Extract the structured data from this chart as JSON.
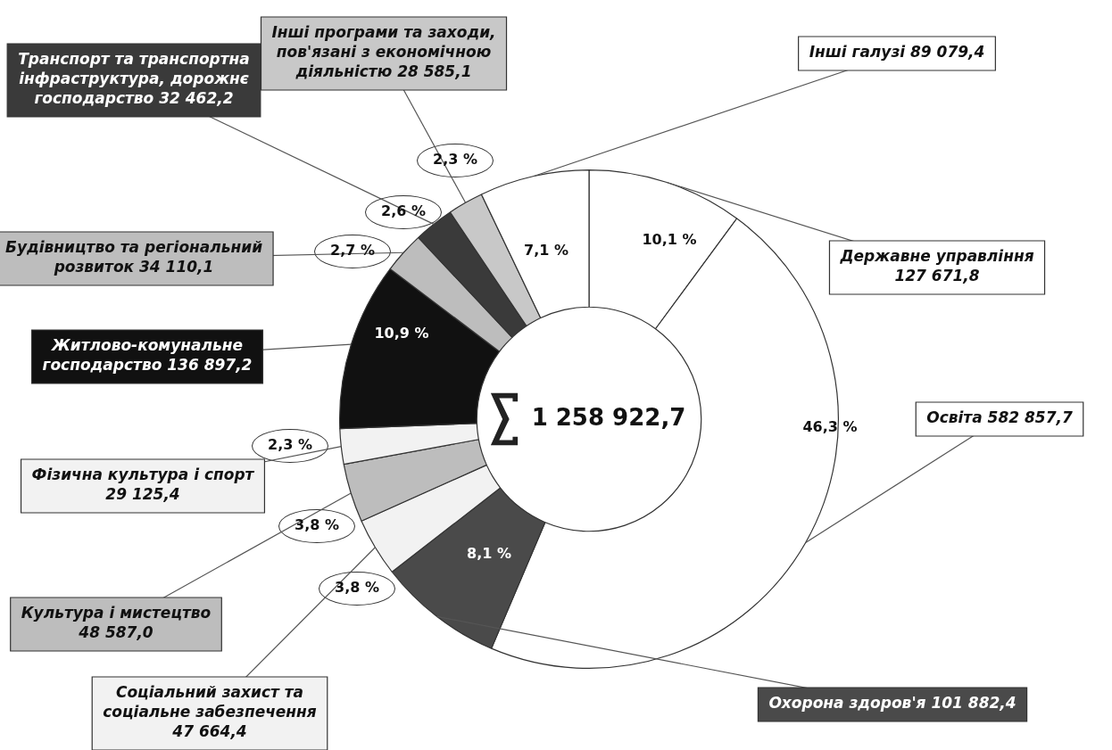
{
  "chart_data": {
    "type": "donut",
    "categories": [
      "Державне управління 127 671,8",
      "Освіта 582 857,7",
      "Охорона здоров'я 101 882,4",
      "Соціальний захист та соціальне забезпечення 47 664,4",
      "Культура і мистецтво 48 587,0",
      "Фізична культура і спорт 29 125,4",
      "Житлово-комунальне господарство 136 897,2",
      "Будівництво та регіональний розвиток 34 110,1",
      "Транспорт та транспортна інфраструктура, дорожнє господарство 32 462,2",
      "Інші програми та заходи, пов'язані з економічною діяльністю 28 585,1",
      "Інші галузі 89 079,4"
    ],
    "values": [
      10.1,
      46.3,
      8.1,
      3.8,
      3.8,
      2.3,
      10.9,
      2.7,
      2.6,
      2.3,
      7.1
    ],
    "colors": [
      "#ffffff",
      "#ffffff",
      "#4a4a4a",
      "#f2f2f2",
      "#bdbdbd",
      "#f2f2f2",
      "#111111",
      "#bdbdbd",
      "#3a3a3a",
      "#c8c8c8",
      "#ffffff"
    ],
    "value_labels": [
      "10,1 %",
      "46,3 %",
      "8,1 %",
      "3,8 %",
      "3,8 %",
      "2,3 %",
      "10,9 %",
      "2,7 %",
      "2,6 %",
      "2,3 %",
      "7,1 %"
    ],
    "annotations": [
      "1 258 922,7"
    ]
  }
}
